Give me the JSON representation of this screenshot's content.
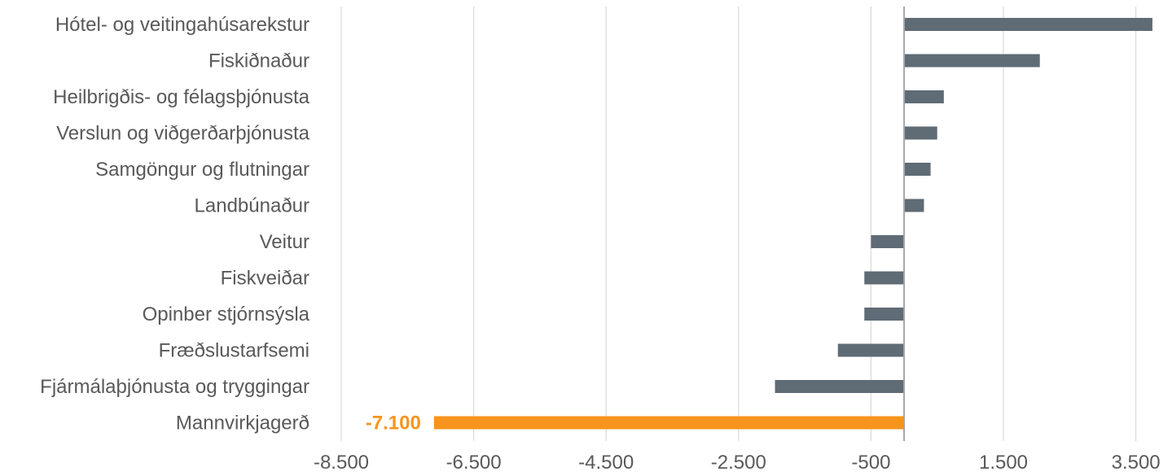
{
  "chart_data": {
    "type": "bar",
    "orientation": "horizontal",
    "title": "",
    "xlabel": "",
    "ylabel": "",
    "categories": [
      "Hótel- og veitingahúsarekstur",
      "Fiskiðnaður",
      "Heilbrigðis- og félagsþjónusta",
      "Verslun og viðgerðarþjónusta",
      "Samgöngur og flutningar",
      "Landbúnaður",
      "Veitur",
      "Fiskveiðar",
      "Opinber stjórnsýsla",
      "Fræðslustarfsemi",
      "Fjármálaþjónusta og tryggingar",
      "Mannvirkjagerð"
    ],
    "values": [
      3750,
      2050,
      600,
      500,
      400,
      300,
      -500,
      -600,
      -600,
      -1000,
      -1950,
      -7100
    ],
    "xlim": [
      -8500,
      3800
    ],
    "xticks": [
      -8500,
      -6500,
      -4500,
      -2500,
      -500,
      1500,
      3500
    ],
    "xtick_labels": [
      "-8.500",
      "-6.500",
      "-4.500",
      "-2.500",
      "-500",
      "1.500",
      "3.500"
    ],
    "data_labels": [
      {
        "category": "Mannvirkjagerð",
        "text": "-7.100"
      }
    ],
    "colors": {
      "default_bar": "#5f6b75",
      "highlight_bar": "#f7941d",
      "gridline": "#d9d9d9",
      "zero_line": "#a6a6a6",
      "text": "#595959"
    },
    "highlight_category": "Mannvirkjagerð",
    "grid": true,
    "grid_axis": "x",
    "legend": "none"
  }
}
